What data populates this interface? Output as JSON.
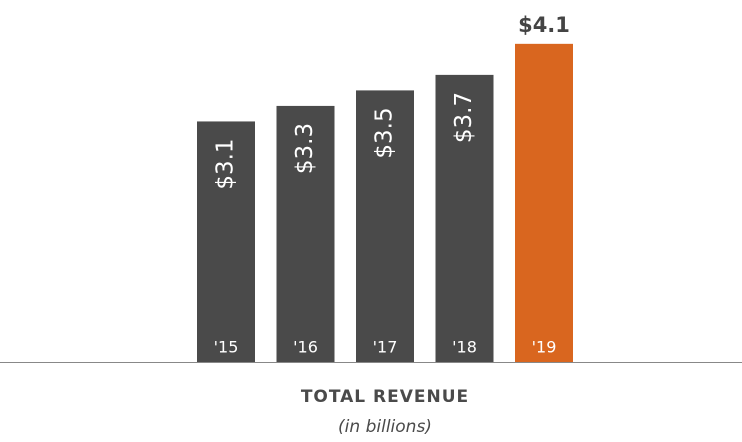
{
  "chart_data": {
    "type": "bar",
    "title": "TOTAL REVENUE",
    "subtitle": "(in billions)",
    "categories": [
      "'15",
      "'16",
      "'17",
      "'18",
      "'19"
    ],
    "values": [
      3.1,
      3.3,
      3.5,
      3.7,
      4.1
    ],
    "value_labels": [
      "$3.1",
      "$3.3",
      "$3.5",
      "$3.7",
      "$4.1"
    ],
    "colors": [
      "#4a4a4a",
      "#4a4a4a",
      "#4a4a4a",
      "#4a4a4a",
      "#d9661f"
    ]
  }
}
